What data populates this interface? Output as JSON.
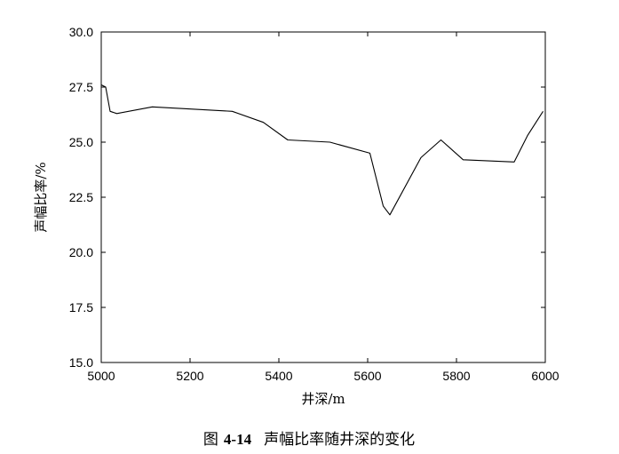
{
  "chart_data": {
    "type": "line",
    "xlabel": "井深/m",
    "ylabel": "声幅比率/%",
    "xlim": [
      5000,
      6000
    ],
    "ylim": [
      15.0,
      30.0
    ],
    "x_ticks": [
      5000,
      5200,
      5400,
      5600,
      5800,
      6000
    ],
    "y_ticks": [
      "15.0",
      "17.5",
      "20.0",
      "22.5",
      "25.0",
      "27.5",
      "30.0"
    ],
    "grid": false,
    "series": [
      {
        "color": "#000000",
        "x": [
          5000,
          5010,
          5020,
          5035,
          5115,
          5295,
          5365,
          5420,
          5515,
          5605,
          5635,
          5650,
          5720,
          5765,
          5815,
          5930,
          5960,
          5995
        ],
        "y": [
          27.6,
          27.5,
          26.4,
          26.3,
          26.6,
          26.4,
          25.9,
          25.1,
          25.0,
          24.5,
          22.1,
          21.7,
          24.3,
          25.1,
          24.2,
          24.1,
          25.3,
          26.4
        ]
      }
    ]
  },
  "caption": {
    "prefix": "图",
    "number": "4-14",
    "text": "声幅比率随井深的变化"
  }
}
